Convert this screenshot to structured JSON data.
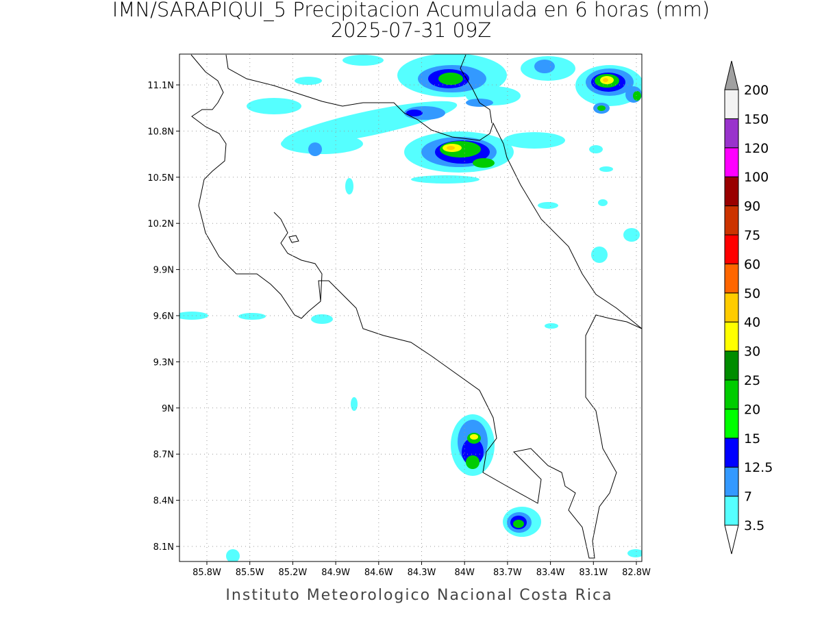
{
  "title": "IMN/SARAPIQUI_5 Precipitacion Acumulada en 6 horas (mm)",
  "subtitle": "2025-07-31 09Z",
  "footer": "Instituto Meteorologico Nacional Costa Rica",
  "map": {
    "lat_labels": [
      "11.1N",
      "10.8N",
      "10.5N",
      "10.2N",
      "9.9N",
      "9.6N",
      "9.3N",
      "9N",
      "8.7N",
      "8.4N",
      "8.1N"
    ],
    "lon_labels": [
      "85.8W",
      "85.5W",
      "85.2W",
      "84.9W",
      "84.6W",
      "84.3W",
      "84W",
      "83.7W",
      "83.4W",
      "83.1W",
      "82.8W"
    ]
  },
  "colorbar": {
    "levels": [
      3.5,
      7,
      12.5,
      15,
      20,
      25,
      30,
      40,
      50,
      60,
      75,
      90,
      100,
      120,
      150,
      200
    ],
    "colors": [
      "#55ffff",
      "#3399ff",
      "#0000ff",
      "#00ff00",
      "#00cc00",
      "#008c00",
      "#ffff00",
      "#ffcc00",
      "#ff6600",
      "#ff0000",
      "#cc3300",
      "#990000",
      "#ff00ff",
      "#9933cc",
      "#f3f3f3"
    ],
    "under_color": "#ffffff",
    "over_color": "#a0a0a0"
  }
}
